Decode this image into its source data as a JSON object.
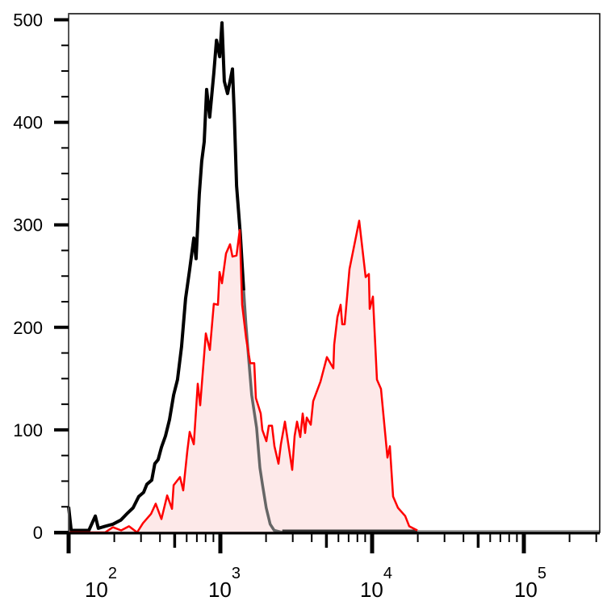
{
  "chart_data": {
    "type": "area",
    "title": "",
    "xlabel": "",
    "ylabel": "",
    "xscale": "log",
    "xlim": [
      100,
      316228
    ],
    "ylim": [
      0,
      500
    ],
    "grid": false,
    "y_ticks": [
      {
        "value": 0,
        "label": "0"
      },
      {
        "value": 100,
        "label": "100"
      },
      {
        "value": 200,
        "label": "200"
      },
      {
        "value": 300,
        "label": "300"
      },
      {
        "value": 400,
        "label": "400"
      },
      {
        "value": 500,
        "label": "500"
      }
    ],
    "x_ticks": [
      {
        "value": 100,
        "base": "10",
        "exp": "2"
      },
      {
        "value": 1000,
        "base": "10",
        "exp": "3"
      },
      {
        "value": 10000,
        "base": "10",
        "exp": "4"
      },
      {
        "value": 100000,
        "base": "10",
        "exp": "5"
      }
    ],
    "colors": {
      "control": "#000000",
      "control_tail": "#666666",
      "stained": "#ff0000",
      "stained_fill": "#fde9e9",
      "baseline": "#a0a0a0"
    },
    "series": [
      {
        "style": "line",
        "color": "#000000",
        "x": [
          100,
          104,
          136,
          150,
          157,
          174,
          196,
          221,
          245,
          266,
          290,
          312,
          328,
          353,
          370,
          389,
          409,
          435,
          462,
          492,
          522,
          555,
          590,
          627,
          668,
          692,
          726,
          754,
          783,
          812,
          851,
          906,
          943,
          990,
          1025,
          1062,
          1115,
          1202,
          1235,
          1279,
          1353,
          1425,
          1473,
          1529,
          1608,
          1733,
          1822,
          1893,
          2004,
          2128,
          2264,
          2558,
          316228
        ],
        "y": [
          25,
          2,
          2,
          16,
          4,
          6,
          8,
          12,
          19,
          24,
          35,
          39,
          47,
          51,
          67,
          71,
          83,
          94,
          110,
          134,
          149,
          181,
          228,
          256,
          287,
          267,
          330,
          362,
          381,
          432,
          405,
          448,
          480,
          464,
          497,
          440,
          428,
          452,
          409,
          338,
          291,
          236,
          204,
          173,
          134,
          102,
          63,
          47,
          24,
          8,
          2,
          0,
          0
        ]
      },
      {
        "style": "filled",
        "color": "#ff0000",
        "x": [
          100,
          174,
          196,
          222,
          250,
          283,
          309,
          349,
          375,
          409,
          446,
          480,
          492,
          542,
          569,
          605,
          628,
          668,
          710,
          736,
          802,
          853,
          906,
          964,
          988,
          1025,
          1089,
          1158,
          1202,
          1278,
          1342,
          1392,
          1480,
          1573,
          1673,
          1714,
          1845,
          1891,
          2010,
          2085,
          2190,
          2272,
          2415,
          2506,
          2664,
          2975,
          3086,
          3201,
          3363,
          3487,
          3618,
          3708,
          3942,
          4089,
          4566,
          5036,
          5556,
          5623,
          5907,
          6203,
          6357,
          6594,
          7098,
          8221,
          9067,
          9522,
          9638,
          10122,
          10762,
          11443,
          12623,
          13094,
          13753,
          14792,
          16527,
          17566,
          19865,
          316228
        ],
        "y": [
          0,
          0,
          5,
          2,
          6,
          0,
          9,
          18,
          28,
          13,
          36,
          23,
          46,
          54,
          41,
          79,
          98,
          86,
          145,
          124,
          194,
          178,
          223,
          222,
          254,
          243,
          272,
          281,
          269,
          270,
          295,
          222,
          189,
          165,
          165,
          131,
          116,
          100,
          89,
          104,
          104,
          84,
          67,
          86,
          108,
          61,
          94,
          108,
          93,
          116,
          97,
          112,
          105,
          128,
          147,
          171,
          160,
          183,
          210,
          222,
          203,
          203,
          257,
          304,
          249,
          252,
          218,
          230,
          149,
          140,
          73,
          84,
          35,
          24,
          16,
          6,
          2,
          0
        ]
      }
    ]
  }
}
